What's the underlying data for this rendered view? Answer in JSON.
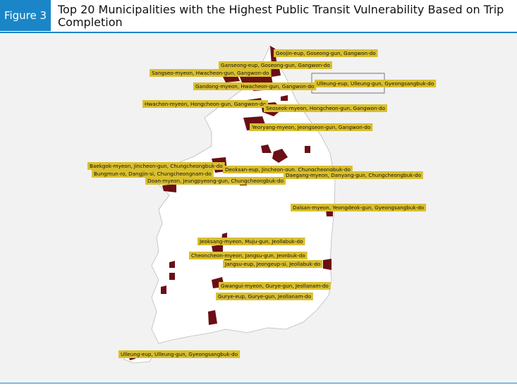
{
  "header": {
    "figure_label": "Figure 3",
    "title": "Top 20 Municipalities with the Highest Public Transit Vulnerability Based on Trip Completion"
  },
  "map": {
    "labels": [
      "Geojin-eup, Goseong-gun, Gangwon-do",
      "Ganseong-eup, Goseong-gun, Gangwon-do",
      "Sangseo-myeon, Hwacheon-gun, Gangwon-do",
      "Ulleung-eup, Ulleung-gun, Gyeongsangbuk-do",
      "Gandong-myeon, Hwacheon-gun, Gangwon-do",
      "Hwachon-myeon, Hongcheon-gun, Gangwon-do",
      "Seoseok-myeon, Hongcheon-gun, Gangwon-do",
      "Yeoryang-myeon, Jeongseon-gun, Gangwon-do",
      "Baekgok-myeon, Jincheon-gun, Chungcheongbuk-do",
      "Deoksan-eup, Jincheon-gun, Chungcheongbuk-do",
      "Bungmun-ro, Dangjin-si, Chungcheongnam-do",
      "Daegang-myeon, Danyang-gun, Chungcheongbuk-do",
      "Doan-myeon, Jeungpyeong-gun, Chungcheongbuk-do",
      "Dalsan-myeon, Yeongdeok-gun, Gyeongsangbuk-do",
      "Jeoksang-myeon, Muju-gun, Jeollabuk-do",
      "Cheoncheon-myeon, Jangsu-gun, Jeonbuk-do",
      "Jangsu-eup, Jeongeup-si, Jeollabuk-do",
      "Gwangui-myeon, Gurye-gun, Jeollanam-do",
      "Gurye-eup, Gurye-gun, Jeollanam-do",
      "Ulleung-eup, Ulleung-gun, Gyeongsangbuk-do"
    ]
  }
}
